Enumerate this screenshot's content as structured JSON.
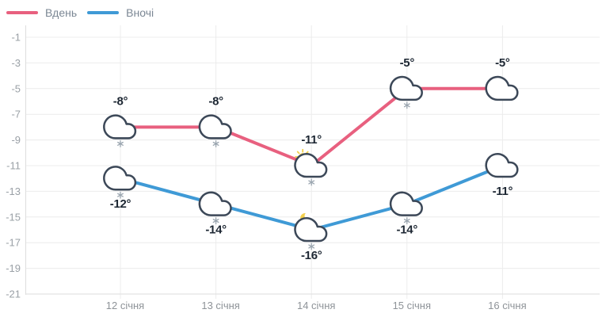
{
  "legend": {
    "items": [
      {
        "label": "Вдень",
        "color": "#e8607f"
      },
      {
        "label": "Вночі",
        "color": "#3f9ad6"
      }
    ]
  },
  "colors": {
    "day_line": "#e8607f",
    "night_line": "#3f9ad6",
    "cloud_outline": "#3c4858",
    "cloud_fill": "#ffffff",
    "snowflake": "#9ba6b0",
    "sun": "#f3cf48",
    "moon": "#f3d04e",
    "gridline": "#ececec",
    "axis_line": "#dedede",
    "tick_text": "#9aa0a6",
    "temp_text": "#1d2733"
  },
  "chart_data": {
    "type": "line",
    "title": "",
    "xlabel": "",
    "ylabel": "",
    "categories": [
      "12 січня",
      "13 січня",
      "14 січня",
      "15 січня",
      "16 січня"
    ],
    "series": [
      {
        "name": "Вдень",
        "color": "#e8607f",
        "values": [
          -8,
          -8,
          -11,
          -5,
          -5
        ],
        "labels": [
          "-8°",
          "-8°",
          "-11°",
          "-5°",
          "-5°"
        ],
        "label_position": "above",
        "icons": [
          "cloud-snow",
          "cloud-snow",
          "sun-cloud-snow",
          "cloud-snow",
          "cloud"
        ]
      },
      {
        "name": "Вночі",
        "color": "#3f9ad6",
        "values": [
          -12,
          -14,
          -16,
          -14,
          -11
        ],
        "labels": [
          "-12°",
          "-14°",
          "-16°",
          "-14°",
          "-11°"
        ],
        "label_position": "below",
        "icons": [
          "cloud-snow",
          "cloud-snow",
          "moon-cloud-snow",
          "cloud-snow",
          "cloud"
        ]
      }
    ],
    "yticks": [
      -1,
      -3,
      -5,
      -7,
      -9,
      -11,
      -13,
      -15,
      -17,
      -19,
      -21
    ],
    "ylim": [
      -21,
      -1
    ],
    "grid": true,
    "legend_position": "top-left"
  }
}
